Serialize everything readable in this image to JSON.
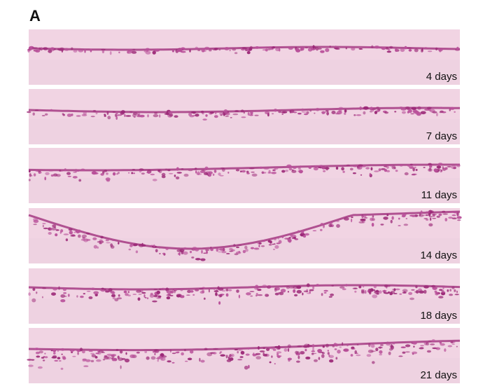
{
  "panel_label": "A",
  "panels": [
    {
      "label": "4 days"
    },
    {
      "label": "7 days"
    },
    {
      "label": "11 days"
    },
    {
      "label": "14 days"
    },
    {
      "label": "18 days"
    },
    {
      "label": "21 days"
    }
  ]
}
